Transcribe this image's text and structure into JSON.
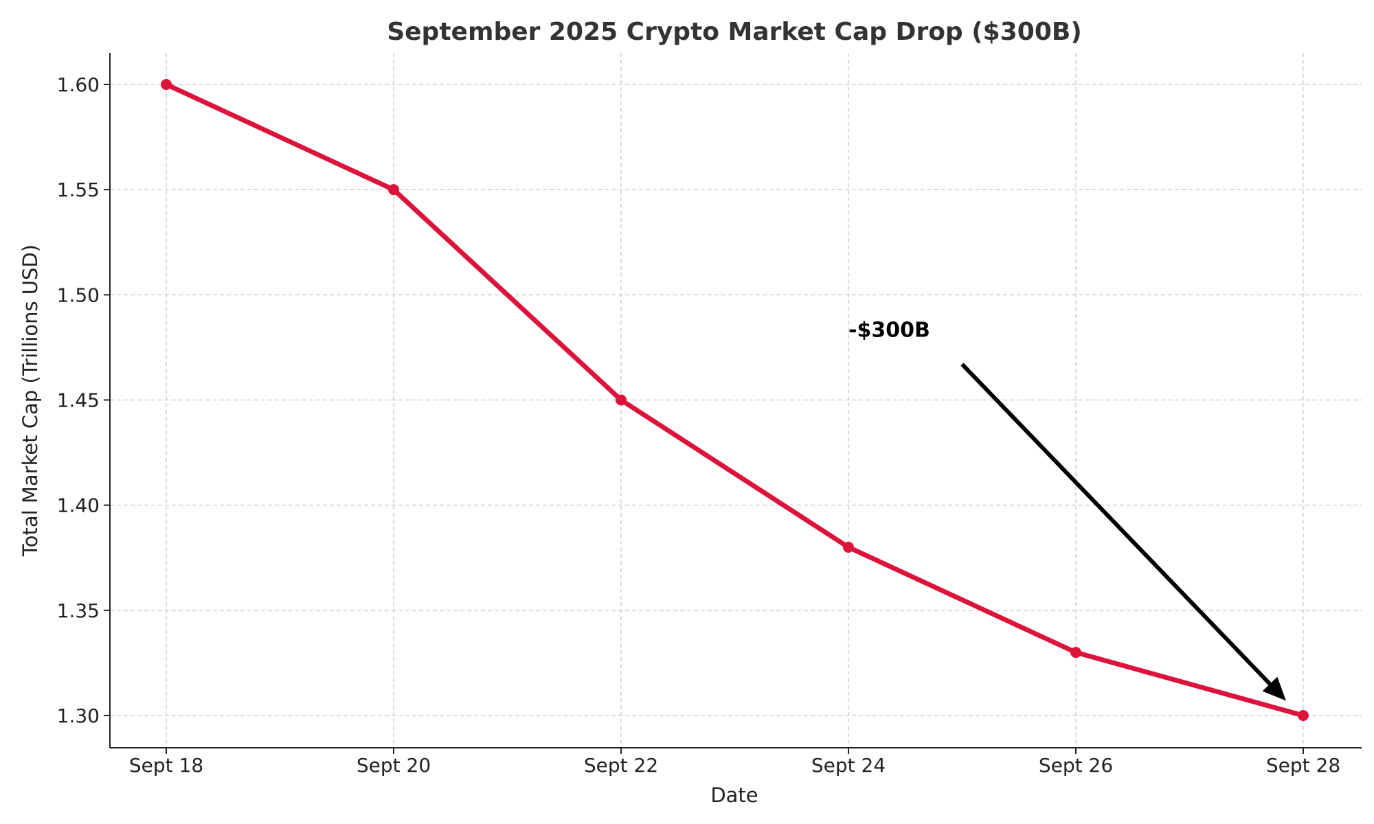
{
  "chart_data": {
    "type": "line",
    "title": "September 2025 Crypto Market Cap Drop ($300B)",
    "xlabel": "Date",
    "ylabel": "Total Market Cap (Trillions USD)",
    "categories": [
      "Sept 18",
      "Sept 20",
      "Sept 22",
      "Sept 24",
      "Sept 26",
      "Sept 28"
    ],
    "values": [
      1.6,
      1.55,
      1.45,
      1.38,
      1.33,
      1.3
    ],
    "yticks": [
      "1.30",
      "1.35",
      "1.40",
      "1.45",
      "1.50",
      "1.55",
      "1.60"
    ],
    "ylim": [
      1.285,
      1.615
    ],
    "grid": true,
    "line_color": "#dc143c",
    "annotation": {
      "text": "-$300B",
      "text_at": [
        "Sept 24",
        1.48
      ],
      "arrow_from": [
        "Sept 25",
        1.467
      ],
      "arrow_to": [
        "Sept 28",
        1.307
      ]
    }
  }
}
